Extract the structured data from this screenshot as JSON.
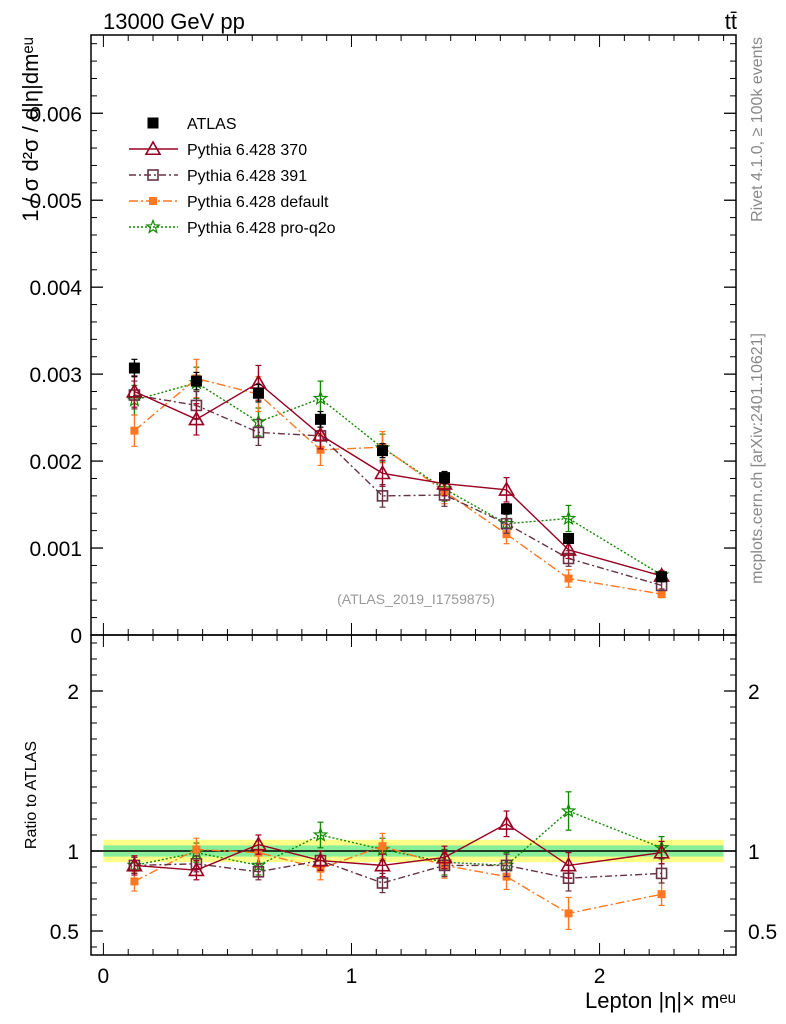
{
  "header": {
    "left": "13000 GeV pp",
    "right": "tt̄"
  },
  "side_labels": {
    "rivet": "Rivet 4.1.0, ≥ 100k events",
    "mcplots": "mcplots.cern.ch [arXiv:2401.10621]"
  },
  "watermark": "(ATLAS_2019_I1759875)",
  "colors": {
    "atlas": "#000000",
    "p370": "#990022",
    "p391": "#663344",
    "pdefault": "#ff7722",
    "pq2o": "#118800",
    "band_outer": "#ffff88",
    "band_inner": "#88ee99"
  },
  "chart_data": [
    {
      "type": "scatter",
      "panel": "main",
      "ylabel": "1 / σ  d²σ / d|η|dmᵉᵘ",
      "xlabel": "Lepton |η|× mᵉᵘ",
      "xlim": [
        -0.05,
        2.55
      ],
      "ylim": [
        0.0,
        0.0069
      ],
      "yticks": [
        {
          "v": 0.001,
          "label": "0.001"
        },
        {
          "v": 0.002,
          "label": "0.002"
        },
        {
          "v": 0.003,
          "label": "0.003"
        },
        {
          "v": 0.004,
          "label": "0.004"
        },
        {
          "v": 0.005,
          "label": "0.005"
        },
        {
          "v": 0.006,
          "label": "0.006"
        },
        {
          "v": 0.0,
          "label": "0"
        }
      ],
      "x": [
        0.125,
        0.375,
        0.625,
        0.875,
        1.125,
        1.375,
        1.625,
        1.875,
        2.25
      ],
      "series": [
        {
          "key": "atlas",
          "name": "ATLAS",
          "marker": "square-filled",
          "line": "none",
          "values": [
            0.00307,
            0.00292,
            0.00278,
            0.00248,
            0.00212,
            0.00181,
            0.00145,
            0.00111,
            0.00067
          ],
          "errors": [
            0.0001,
            0.0001,
            0.0001,
            9e-05,
            8e-05,
            7e-05,
            6e-05,
            5e-05,
            4e-05
          ]
        },
        {
          "key": "p370",
          "name": "Pythia 6.428 370",
          "marker": "triangle-open",
          "line": "solid",
          "values": [
            0.0028,
            0.00248,
            0.0029,
            0.0023,
            0.00186,
            0.00174,
            0.00167,
            0.00098,
            0.00068
          ],
          "errors": [
            0.00018,
            0.00018,
            0.0002,
            0.00016,
            0.00015,
            0.00014,
            0.00014,
            0.0001,
            5e-05
          ]
        },
        {
          "key": "p391",
          "name": "Pythia 6.428 391",
          "marker": "square-open",
          "line": "dashdot",
          "values": [
            0.00276,
            0.00264,
            0.00233,
            0.00229,
            0.0016,
            0.00161,
            0.00128,
            0.00088,
            0.00057
          ],
          "errors": [
            0.00016,
            0.00016,
            0.00015,
            0.00015,
            0.00013,
            0.00013,
            0.00011,
            9e-05,
            4e-05
          ]
        },
        {
          "key": "pdefault",
          "name": "Pythia 6.428 default",
          "marker": "square-filled-small",
          "line": "dashdot2",
          "values": [
            0.00235,
            0.00295,
            0.00277,
            0.00213,
            0.00216,
            0.00165,
            0.00116,
            0.00065,
            0.00047
          ],
          "errors": [
            0.00018,
            0.00022,
            0.0002,
            0.00018,
            0.00018,
            0.00014,
            0.00011,
            0.0001,
            4e-05
          ]
        },
        {
          "key": "pq2o",
          "name": "Pythia 6.428 pro-q2o",
          "marker": "star",
          "line": "dotted",
          "values": [
            0.0027,
            0.0029,
            0.00245,
            0.00272,
            0.00215,
            0.00168,
            0.00128,
            0.00134,
            0.00069
          ],
          "errors": [
            0.00017,
            0.00018,
            0.00016,
            0.0002,
            0.00016,
            0.00014,
            0.00012,
            0.00015,
            5e-05
          ]
        }
      ]
    },
    {
      "type": "scatter",
      "panel": "ratio",
      "ylabel": "Ratio to ATLAS",
      "xlabel": "Lepton |η|× mᵉᵘ",
      "xlim": [
        -0.05,
        2.55
      ],
      "ylim": [
        0.35,
        2.35
      ],
      "yticks": [
        {
          "v": 0.5,
          "label": "0.5"
        },
        {
          "v": 1,
          "label": "1"
        },
        {
          "v": 2,
          "label": "2"
        }
      ],
      "xticks": [
        {
          "v": 0,
          "label": "0"
        },
        {
          "v": 1,
          "label": "1"
        },
        {
          "v": 2,
          "label": "2"
        }
      ],
      "x": [
        0.125,
        0.375,
        0.625,
        0.875,
        1.125,
        1.375,
        1.625,
        1.875,
        2.25
      ],
      "band": {
        "outer": 0.07,
        "inner": 0.035
      },
      "series": [
        {
          "key": "p370",
          "values": [
            0.91,
            0.88,
            1.04,
            0.94,
            0.91,
            0.96,
            1.17,
            0.91,
            0.99
          ],
          "errors": [
            0.06,
            0.06,
            0.06,
            0.06,
            0.07,
            0.07,
            0.08,
            0.08,
            0.07
          ]
        },
        {
          "key": "p391",
          "values": [
            0.91,
            0.92,
            0.87,
            0.94,
            0.8,
            0.91,
            0.91,
            0.83,
            0.86
          ],
          "errors": [
            0.05,
            0.05,
            0.05,
            0.06,
            0.06,
            0.07,
            0.07,
            0.08,
            0.06
          ]
        },
        {
          "key": "pdefault",
          "values": [
            0.81,
            1.01,
            0.99,
            0.89,
            1.03,
            0.91,
            0.84,
            0.61,
            0.73
          ],
          "errors": [
            0.06,
            0.07,
            0.07,
            0.07,
            0.08,
            0.08,
            0.08,
            0.1,
            0.07
          ]
        },
        {
          "key": "pq2o",
          "values": [
            0.91,
            0.99,
            0.91,
            1.1,
            1.01,
            0.93,
            0.91,
            1.25,
            1.02
          ],
          "errors": [
            0.05,
            0.06,
            0.06,
            0.08,
            0.07,
            0.08,
            0.08,
            0.12,
            0.07
          ]
        }
      ]
    }
  ]
}
